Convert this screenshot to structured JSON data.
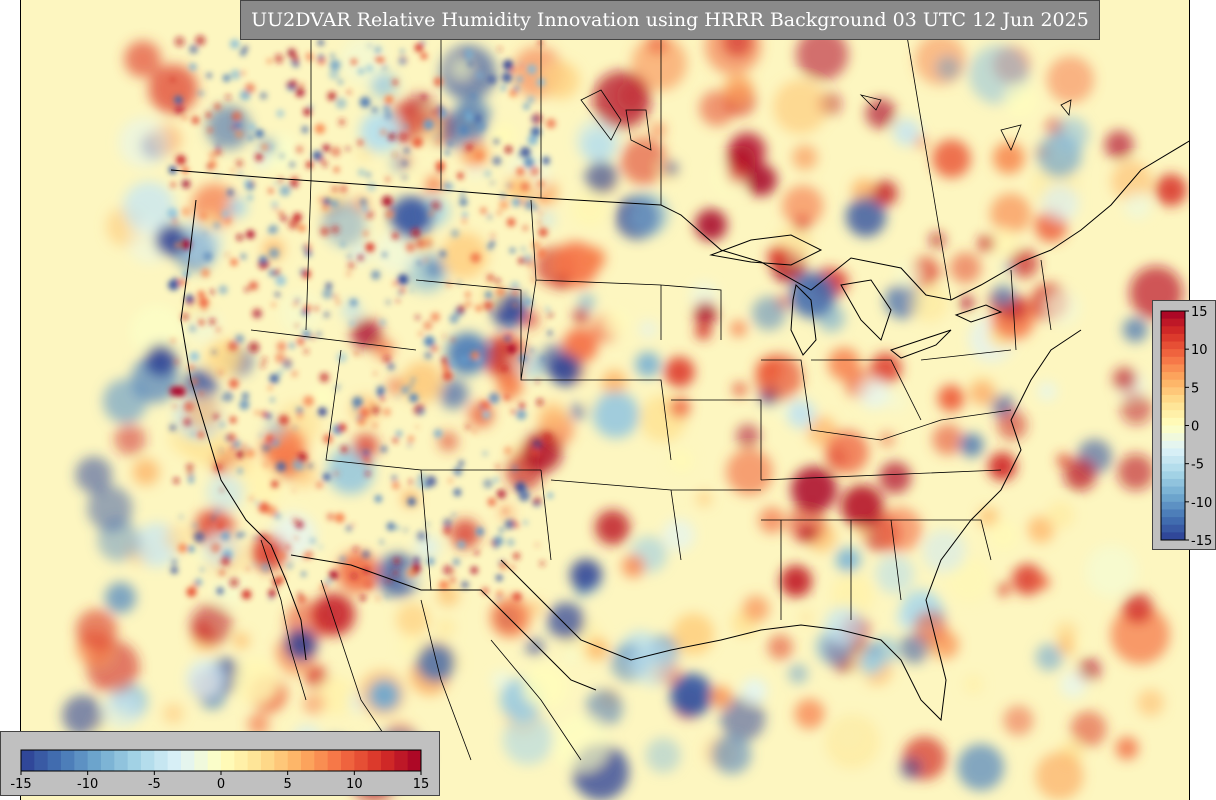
{
  "title": "UU2DVAR Relative Humidity Innovation using HRRR Background 03 UTC 12 Jun 2025",
  "colorbar_vertical": {
    "ticks": [
      "15",
      "10",
      "5",
      "0",
      "-5",
      "-10",
      "-15"
    ]
  },
  "colorbar_horizontal": {
    "ticks": [
      "-15",
      "-10",
      "-5",
      "0",
      "5",
      "10",
      "15"
    ]
  },
  "color_scale": {
    "min": -15,
    "max": 15,
    "colors": [
      "#2c3e94",
      "#4575b4",
      "#74add1",
      "#abd9e9",
      "#e0f3f8",
      "#ffffbf",
      "#fee090",
      "#fdae61",
      "#f46d43",
      "#d73027",
      "#a50026"
    ]
  }
}
